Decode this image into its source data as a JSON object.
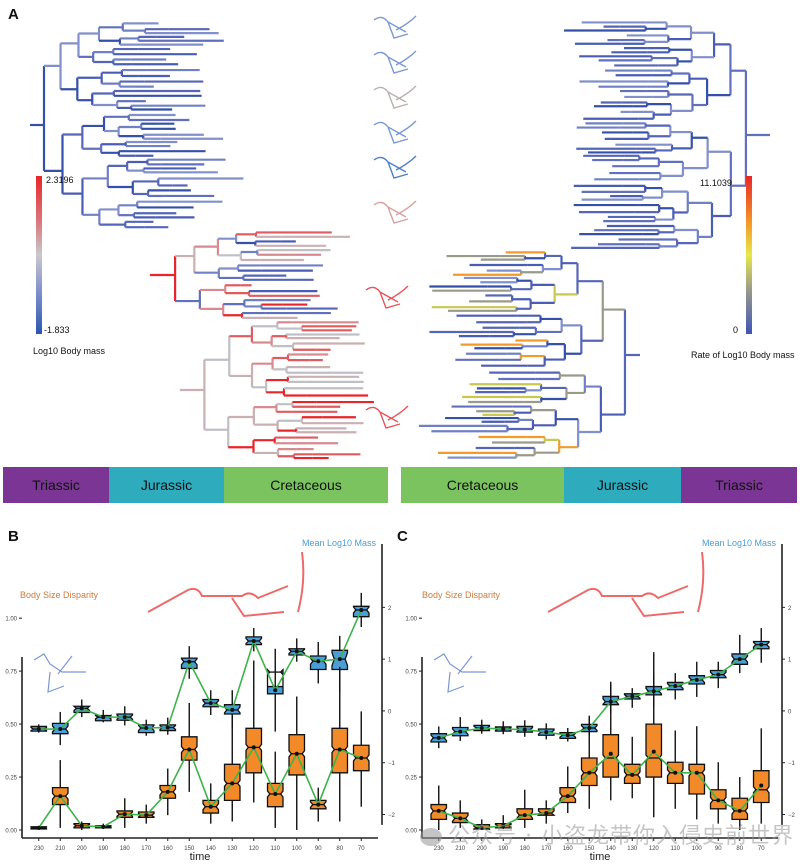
{
  "panels": {
    "a": "A",
    "b": "B",
    "c": "C"
  },
  "phylogeny": {
    "left_legend": {
      "title": "Log10 Body mass",
      "max": "2.3196",
      "min": "-1.833",
      "colors": [
        "#e8262a",
        "#c9c9cc",
        "#2a56b0"
      ]
    },
    "right_legend": {
      "title": "Rate of Log10 Body mass",
      "max": "11.1039",
      "min": "0",
      "colors": [
        "#e8262a",
        "#f39a28",
        "#e6e84a",
        "#9a9a8a",
        "#3d55b5"
      ]
    }
  },
  "periods_left": [
    {
      "label": "Triassic",
      "color": "#7b3594"
    },
    {
      "label": "Jurassic",
      "color": "#2eabbd"
    },
    {
      "label": "Cretaceous",
      "color": "#7ac35f"
    }
  ],
  "periods_right": [
    {
      "label": "Cretaceous",
      "color": "#7ac35f"
    },
    {
      "label": "Jurassic",
      "color": "#2eabbd"
    },
    {
      "label": "Triassic",
      "color": "#7b3594"
    }
  ],
  "chart_data": [
    {
      "type": "box",
      "panel": "B",
      "xlabel": "time",
      "categories": [
        "230",
        "210",
        "200",
        "190",
        "180",
        "170",
        "160",
        "150",
        "140",
        "130",
        "120",
        "110",
        "100",
        "90",
        "80",
        "70"
      ],
      "left_axis": {
        "label": "Body Size Disparity",
        "ylim": [
          0,
          1.1
        ],
        "ticks": [
          "0.00",
          "0.25",
          "0.50",
          "0.75",
          "1.00"
        ]
      },
      "right_axis": {
        "label": "Mean Log10 Mass",
        "ylim": [
          -2.3,
          2.2
        ],
        "ticks": [
          "2",
          "1",
          "0",
          "−1",
          "−2"
        ]
      },
      "series": [
        {
          "name": "Mean Log10 Mass",
          "axis": "right",
          "color": "#4a9ed8",
          "median": [
            -0.35,
            -0.35,
            0.05,
            -0.12,
            -0.12,
            -0.33,
            -0.32,
            0.95,
            0.15,
            0.02,
            1.35,
            0.75,
            1.15,
            0.96,
            1.0,
            1.95
          ],
          "q1": [
            -0.39,
            -0.44,
            -0.03,
            -0.19,
            -0.18,
            -0.42,
            -0.38,
            0.82,
            0.08,
            -0.06,
            1.28,
            0.33,
            1.08,
            0.8,
            1.17,
            1.82
          ],
          "q3": [
            -0.3,
            -0.24,
            0.09,
            -0.09,
            -0.06,
            -0.27,
            -0.27,
            1.02,
            0.22,
            0.12,
            1.43,
            0.47,
            1.2,
            1.06,
            0.8,
            2.02
          ],
          "whisker_low": [
            -0.42,
            -0.66,
            -0.12,
            -0.22,
            -0.28,
            -0.48,
            -0.46,
            0.62,
            -0.08,
            -0.35,
            1.15,
            -0.4,
            0.95,
            0.53,
            0.37,
            1.62
          ],
          "whisker_high": [
            -0.26,
            -0.02,
            0.22,
            0.02,
            0.09,
            -0.17,
            -0.13,
            1.25,
            0.4,
            0.4,
            1.6,
            1.2,
            1.4,
            1.33,
            1.45,
            2.28
          ],
          "mean": [
            -0.35,
            -0.35,
            0.05,
            -0.12,
            -0.12,
            -0.33,
            -0.32,
            0.95,
            0.15,
            0.02,
            1.35,
            0.4,
            1.15,
            0.96,
            1.0,
            1.95
          ]
        },
        {
          "name": "Body Size Disparity",
          "axis": "left",
          "color": "#f28a2a",
          "median": [
            0.01,
            0.16,
            0.02,
            0.015,
            0.075,
            0.07,
            0.18,
            0.38,
            0.11,
            0.22,
            0.39,
            0.17,
            0.36,
            0.12,
            0.38,
            0.34
          ],
          "q1": [
            0.005,
            0.12,
            0.01,
            0.01,
            0.06,
            0.06,
            0.15,
            0.33,
            0.08,
            0.14,
            0.27,
            0.11,
            0.26,
            0.1,
            0.27,
            0.28
          ],
          "q3": [
            0.015,
            0.2,
            0.03,
            0.02,
            0.09,
            0.085,
            0.21,
            0.44,
            0.14,
            0.31,
            0.48,
            0.22,
            0.45,
            0.14,
            0.48,
            0.4
          ],
          "whisker_low": [
            0.0,
            0.01,
            0.0,
            0.005,
            0.01,
            0.03,
            0.07,
            0.18,
            0.03,
            0.04,
            0.13,
            0.01,
            0.0,
            0.04,
            0.04,
            0.11
          ],
          "whisker_high": [
            0.02,
            0.33,
            0.04,
            0.03,
            0.15,
            0.12,
            0.29,
            0.6,
            0.22,
            0.55,
            0.8,
            0.37,
            0.63,
            0.2,
            0.77,
            0.56
          ],
          "mean": [
            0.01,
            0.16,
            0.02,
            0.015,
            0.075,
            0.07,
            0.18,
            0.38,
            0.11,
            0.22,
            0.39,
            0.17,
            0.36,
            0.12,
            0.38,
            0.34
          ]
        }
      ]
    },
    {
      "type": "box",
      "panel": "C",
      "xlabel": "time",
      "categories": [
        "230",
        "210",
        "200",
        "190",
        "180",
        "170",
        "160",
        "150",
        "140",
        "130",
        "120",
        "110",
        "100",
        "90",
        "80",
        "70"
      ],
      "left_axis": {
        "label": "Body Size Disparity",
        "ylim": [
          0,
          1.1
        ],
        "ticks": [
          "0.00",
          "0.25",
          "0.50",
          "0.75",
          "1.00"
        ]
      },
      "right_axis": {
        "label": "Mean Log10 Mass",
        "ylim": [
          -2.3,
          2.2
        ],
        "ticks": [
          "2",
          "1",
          "0",
          "−1",
          "−2"
        ]
      },
      "series": [
        {
          "name": "Mean Log10 Mass",
          "axis": "right",
          "color": "#4a9ed8",
          "median": [
            -0.52,
            -0.4,
            -0.33,
            -0.35,
            -0.36,
            -0.41,
            -0.47,
            -0.33,
            0.18,
            0.28,
            0.38,
            0.48,
            0.6,
            0.7,
            1.0,
            1.28
          ],
          "q1": [
            -0.6,
            -0.48,
            -0.38,
            -0.39,
            -0.41,
            -0.47,
            -0.53,
            -0.4,
            0.12,
            0.23,
            0.31,
            0.41,
            0.52,
            0.64,
            0.9,
            1.2
          ],
          "q3": [
            -0.44,
            -0.32,
            -0.28,
            -0.31,
            -0.3,
            -0.35,
            -0.42,
            -0.26,
            0.28,
            0.33,
            0.47,
            0.55,
            0.68,
            0.78,
            1.1,
            1.34
          ],
          "whisker_low": [
            -0.72,
            -0.58,
            -0.44,
            -0.45,
            -0.5,
            -0.55,
            -0.59,
            -0.49,
            -0.05,
            0.06,
            0.07,
            0.22,
            0.27,
            0.44,
            0.73,
            0.93
          ],
          "whisker_high": [
            -0.3,
            -0.12,
            -0.17,
            -0.2,
            -0.18,
            -0.24,
            -0.33,
            -0.13,
            0.5,
            0.44,
            0.73,
            0.73,
            0.95,
            0.95,
            1.47,
            1.6
          ],
          "mean": [
            -0.52,
            -0.4,
            -0.33,
            -0.35,
            -0.36,
            -0.41,
            -0.47,
            -0.33,
            0.18,
            0.28,
            0.38,
            0.48,
            0.6,
            0.7,
            1.0,
            1.28
          ]
        },
        {
          "name": "Body Size Disparity",
          "axis": "left",
          "color": "#f28a2a",
          "median": [
            0.09,
            0.055,
            0.01,
            0.02,
            0.07,
            0.08,
            0.16,
            0.27,
            0.34,
            0.26,
            0.34,
            0.27,
            0.27,
            0.14,
            0.09,
            0.19
          ],
          "q1": [
            0.05,
            0.035,
            0.005,
            0.01,
            0.05,
            0.07,
            0.13,
            0.21,
            0.25,
            0.22,
            0.25,
            0.22,
            0.17,
            0.1,
            0.05,
            0.13
          ],
          "q3": [
            0.12,
            0.08,
            0.025,
            0.03,
            0.1,
            0.1,
            0.2,
            0.34,
            0.45,
            0.31,
            0.5,
            0.32,
            0.31,
            0.19,
            0.15,
            0.28
          ],
          "whisker_low": [
            0.0,
            0.01,
            0.0,
            0.005,
            0.01,
            0.03,
            0.08,
            0.1,
            0.14,
            0.15,
            0.06,
            0.1,
            0.05,
            0.03,
            0.0,
            0.03
          ],
          "whisker_high": [
            0.21,
            0.14,
            0.05,
            0.07,
            0.19,
            0.14,
            0.3,
            0.54,
            0.7,
            0.44,
            0.84,
            0.47,
            0.49,
            0.32,
            0.25,
            0.48
          ],
          "mean": [
            0.09,
            0.055,
            0.01,
            0.02,
            0.07,
            0.08,
            0.16,
            0.27,
            0.36,
            0.26,
            0.37,
            0.27,
            0.27,
            0.14,
            0.09,
            0.21
          ]
        }
      ]
    }
  ],
  "watermark": "公众号 · 小盗龙带你入侵史前世界"
}
